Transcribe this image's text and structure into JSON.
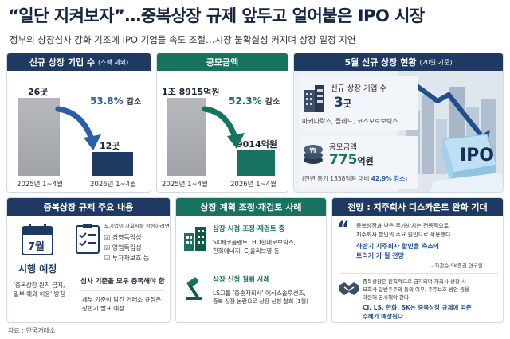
{
  "title": "“일단 지켜보자”…중복상장 규제 앞두고 얼어붙은 IPO 시장",
  "subtitle": "정부의 상장심사 강화 기조에 IPO 기업들 속도 조절…시장 불확실성 커지며 상장 일정 지연",
  "panel1": {
    "title": "신규 상장 기업 수",
    "note": "(스팩 제외)",
    "value_2025": "26곳",
    "value_2026": "12곳",
    "pct": "53.8%",
    "pct_word": "감소",
    "x_2025": "2025년 1~4월",
    "x_2026": "2026년 1~4월"
  },
  "panel2": {
    "title": "공모금액",
    "value_2025": "1조 8915억원",
    "value_2026": "9014억원",
    "pct": "52.3%",
    "pct_word": "감소",
    "x_2025": "2025년 1~4월",
    "x_2026": "2026년 1~4월"
  },
  "chart_data": [
    {
      "type": "bar",
      "title": "신규 상장 기업 수",
      "categories": [
        "2025년 1~4월",
        "2026년 1~4월"
      ],
      "values": [
        26,
        12
      ]
    },
    {
      "type": "bar",
      "title": "공모금액",
      "categories": [
        "2025년 1~4월",
        "2026년 1~4월"
      ],
      "values": [
        18915,
        9014
      ]
    }
  ],
  "panel3": {
    "title": "5월 신규 상장 현황",
    "note": "(20일 기준)",
    "count_label": "신규 상장 기업 수",
    "count_value": "3",
    "count_unit": "곳",
    "companies": "마키나락스, 플레드, 코스모로보틱스",
    "amount_label": "공모금액",
    "amount_value": "775",
    "amount_unit": "억원",
    "compare_text": "(전년 동기 1358억원 대비",
    "compare_pct": "42.9% 감소",
    "compare_end": ")",
    "ipo_text": "IPO"
  },
  "panel4": {
    "title": "중복상장 규제 주요 내용",
    "month": "7월",
    "effective": "시행 예정",
    "effective_note1": "'중복상장 원칙 금지,",
    "effective_note2": "일부 예외 허용' 방침",
    "check_intro1": "모기업이 자회사를 상장하려면",
    "check1": "경영독립성",
    "check2": "영업독립성",
    "check3": "투자자보호 등",
    "criteria": "심사 기준을 모두 충족해야 함",
    "detail1": "세부 기준이 담긴 거래소 규정은",
    "detail2": "상반기 발표 예정"
  },
  "panel5": {
    "title": "상장 계획 조정·재검토 사례",
    "case1_title": "상장 시점 조정·재검토 중",
    "case1_line1": "SK에코플랜트, HD현대로보틱스,",
    "case1_line2": "한화에너지, CJ올리브영 등",
    "case2_title": "상장 신청 철회 사례",
    "case2_line1": "LS그룹 '증손자회사' 에식스솔루션즈,",
    "case2_line2": "중복 상장 논란으로 상장 신청 철회 (1월)"
  },
  "panel6": {
    "title": "전망 : 지주회사 디스카운트 완화 기대",
    "q1_line1": "중복상장과 낮은 주가방치는 전통적으로",
    "q1_line2": "지주회사 할인의 주요 원인으로 작용했다",
    "q1_hl1": "하반기 지주회사 할인을 축소의",
    "q1_hl2": "트리거 가 될 전망",
    "q1_src": "- 최관순 SK증권 연구원",
    "q2_line1": "중복상장은 원칙적으로 금지되며 자회사 상장 시",
    "q2_line2": "모회사 일반주주의 동의 여부, 주주보호 방안 등을",
    "q2_line3": "마련해 공시해야 한다",
    "q2_hl1": "CJ, LS, 한화, SK는 중복상장 규제에 따른",
    "q2_hl2": "수혜가 예상된다"
  },
  "source": "자료 : 한국거래소",
  "colors": {
    "navy": "#1e3a63",
    "green": "#17735f",
    "blue_accent": "#2a5ea8",
    "gray_bar": "#a9acb0"
  }
}
